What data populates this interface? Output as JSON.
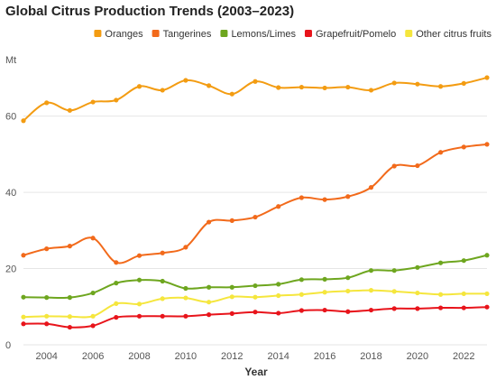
{
  "chart_data": {
    "type": "line",
    "title": "Global Citrus Production Trends (2003–2023)",
    "xlabel": "Year",
    "ylabel": "Mt",
    "x": [
      2003,
      2004,
      2005,
      2006,
      2007,
      2008,
      2009,
      2010,
      2011,
      2012,
      2013,
      2014,
      2015,
      2016,
      2017,
      2018,
      2019,
      2020,
      2021,
      2022,
      2023
    ],
    "xticks": [
      "2004",
      "2006",
      "2008",
      "2010",
      "2012",
      "2014",
      "2016",
      "2018",
      "2020",
      "2022"
    ],
    "xlim": [
      2003,
      2023
    ],
    "yticks": [
      "0",
      "20",
      "40",
      "60"
    ],
    "ylim": [
      0,
      72
    ],
    "grid": "horizontal",
    "legend": "top-right",
    "series": [
      {
        "name": "Oranges",
        "color": "#f39c12",
        "values": [
          58.8,
          63.5,
          61.5,
          63.7,
          64.2,
          67.8,
          66.8,
          69.4,
          68.0,
          65.8,
          69.1,
          67.5,
          67.6,
          67.4,
          67.6,
          66.8,
          68.7,
          68.4,
          67.8,
          68.6,
          70.1
        ]
      },
      {
        "name": "Tangerines",
        "color": "#f26a1b",
        "values": [
          23.5,
          25.2,
          25.9,
          28.0,
          21.6,
          23.4,
          24.1,
          25.6,
          32.2,
          32.6,
          33.5,
          36.3,
          38.6,
          38.1,
          38.9,
          41.3,
          46.9,
          47.0,
          50.5,
          51.9,
          52.6
        ]
      },
      {
        "name": "Lemons/Limes",
        "color": "#6ea61f",
        "values": [
          12.5,
          12.4,
          12.4,
          13.6,
          16.2,
          17.0,
          16.7,
          14.8,
          15.1,
          15.1,
          15.5,
          15.9,
          17.1,
          17.2,
          17.6,
          19.5,
          19.5,
          20.3,
          21.5,
          22.1,
          23.5
        ]
      },
      {
        "name": "Grapefruit/Pomelo",
        "color": "#e8141b",
        "values": [
          5.5,
          5.5,
          4.6,
          5.0,
          7.2,
          7.5,
          7.5,
          7.5,
          7.9,
          8.2,
          8.6,
          8.3,
          9.0,
          9.1,
          8.7,
          9.1,
          9.5,
          9.5,
          9.7,
          9.7,
          9.9
        ]
      },
      {
        "name": "Other citrus fruits",
        "color": "#f5e63d",
        "values": [
          7.3,
          7.5,
          7.4,
          7.5,
          10.8,
          10.7,
          12.1,
          12.3,
          11.2,
          12.6,
          12.5,
          12.9,
          13.2,
          13.8,
          14.1,
          14.3,
          14.0,
          13.6,
          13.2,
          13.4,
          13.4
        ]
      }
    ]
  }
}
